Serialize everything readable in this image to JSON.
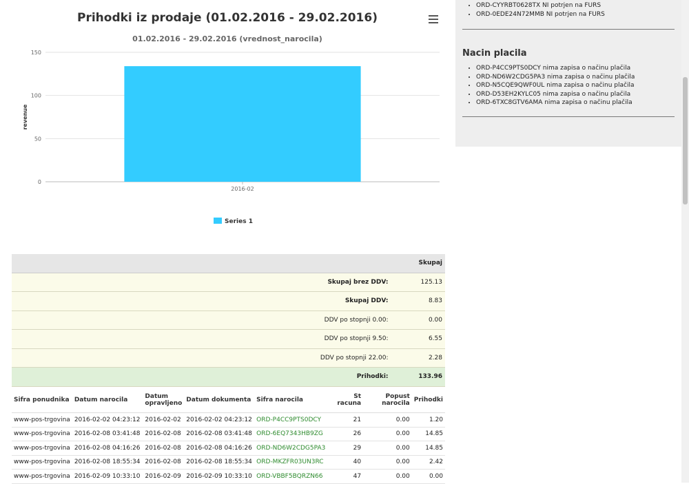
{
  "chart": {
    "menu_icon": "hamburger-menu-icon"
  },
  "chart_data": {
    "type": "bar",
    "title": "Prihodki iz prodaje (01.02.2016 - 29.02.2016)",
    "subtitle": "01.02.2016 - 29.02.2016 (vrednost_narocila)",
    "xlabel": "",
    "ylabel": "revenue",
    "categories": [
      "2016-02"
    ],
    "series": [
      {
        "name": "Series 1",
        "values": [
          133.96
        ],
        "color": "#33ccff"
      }
    ],
    "yticks": [
      0,
      50,
      100,
      150
    ],
    "ylim": [
      0,
      150
    ],
    "grid": true,
    "legend": "bottom-center"
  },
  "side": {
    "furs_items": [
      "ORD-CYYRBT0628TX NI potrjen na FURS",
      "ORD-0EDE24N72MMB NI potrjen na FURS"
    ],
    "payment_heading": "Nacin placila",
    "payment_items": [
      "ORD-P4CC9PTS0DCY nima zapisa o načinu plačila",
      "ORD-ND6W2CDG5PA3 nima zapisa o načinu plačila",
      "ORD-N5CQE9QWF0UL nima zapisa o načinu plačila",
      "ORD-D53EH2KYLC05 nima zapisa o načinu plačila",
      "ORD-6TXC8GTV6AMA nima zapisa o načinu plačila"
    ]
  },
  "summary": {
    "header": "Skupaj",
    "rows": [
      {
        "label": "Skupaj brez DDV:",
        "value": "125.13",
        "bold": true
      },
      {
        "label": "Skupaj DDV:",
        "value": "8.83",
        "bold": true
      },
      {
        "label": "DDV po stopnji 0.00:",
        "value": "0.00",
        "bold": false
      },
      {
        "label": "DDV po stopnji 9.50:",
        "value": "6.55",
        "bold": false
      },
      {
        "label": "DDV po stopnji 22.00:",
        "value": "2.28",
        "bold": false
      }
    ],
    "total_label": "Prihodki:",
    "total_value": "133.96"
  },
  "orders": {
    "headers": {
      "provider": "Sifra ponudnika",
      "order_date": "Datum narocila",
      "done_date": "Datum opravljeno",
      "doc_date": "Datum dokumenta",
      "order_code": "Sifra narocila",
      "invoice_no": "St racuna",
      "discount": "Popust narocila",
      "revenue": "Prihodki"
    },
    "rows": [
      {
        "provider": "www-pos-trgovina",
        "order_date": "2016-02-02 04:23:12",
        "done_date": "2016-02-02",
        "doc_date": "2016-02-02 04:23:12",
        "order_code": "ORD-P4CC9PTS0DCY",
        "invoice_no": "21",
        "discount": "0.00",
        "revenue": "1.20"
      },
      {
        "provider": "www-pos-trgovina",
        "order_date": "2016-02-08 03:41:48",
        "done_date": "2016-02-08",
        "doc_date": "2016-02-08 03:41:48",
        "order_code": "ORD-6EQ7343HB9ZG",
        "invoice_no": "26",
        "discount": "0.00",
        "revenue": "14.85"
      },
      {
        "provider": "www-pos-trgovina",
        "order_date": "2016-02-08 04:16:26",
        "done_date": "2016-02-08",
        "doc_date": "2016-02-08 04:16:26",
        "order_code": "ORD-ND6W2CDG5PA3",
        "invoice_no": "29",
        "discount": "0.00",
        "revenue": "14.85"
      },
      {
        "provider": "www-pos-trgovina",
        "order_date": "2016-02-08 18:55:34",
        "done_date": "2016-02-08",
        "doc_date": "2016-02-08 18:55:34",
        "order_code": "ORD-MKZFR03UN3RC",
        "invoice_no": "40",
        "discount": "0.00",
        "revenue": "2.42"
      },
      {
        "provider": "www-pos-trgovina",
        "order_date": "2016-02-09 10:33:10",
        "done_date": "2016-02-09",
        "doc_date": "2016-02-09 10:33:10",
        "order_code": "ORD-VBBF5BQRZN66",
        "invoice_no": "47",
        "discount": "0.00",
        "revenue": "0.00"
      }
    ]
  }
}
